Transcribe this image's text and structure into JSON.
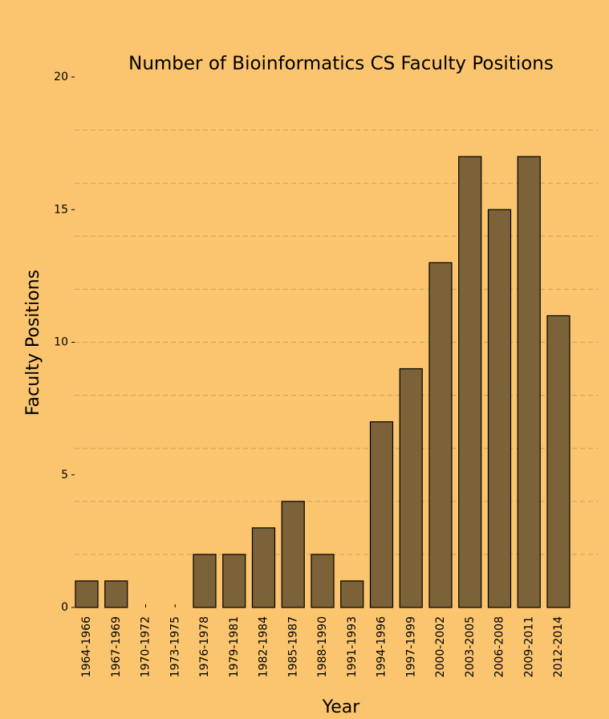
{
  "chart_data": {
    "type": "bar",
    "title": "Number of Bioinformatics CS Faculty Positions",
    "xlabel": "Year",
    "ylabel": "Faculty Positions",
    "categories": [
      "1964-1966",
      "1967-1969",
      "1970-1972",
      "1973-1975",
      "1976-1978",
      "1979-1981",
      "1982-1984",
      "1985-1987",
      "1988-1990",
      "1991-1993",
      "1994-1996",
      "1997-1999",
      "2000-2002",
      "2003-2005",
      "2006-2008",
      "2009-2011",
      "2012-2014"
    ],
    "values": [
      1,
      1,
      0,
      0,
      2,
      2,
      3,
      4,
      2,
      1,
      7,
      9,
      13,
      17,
      15,
      17,
      11
    ],
    "color": "#7b6238",
    "ylim": [
      0,
      20
    ],
    "yticks": [
      0,
      5,
      10,
      15,
      20
    ],
    "grid": true,
    "ygrid": [
      2,
      4,
      6,
      8,
      10,
      12,
      14,
      16,
      18
    ]
  }
}
